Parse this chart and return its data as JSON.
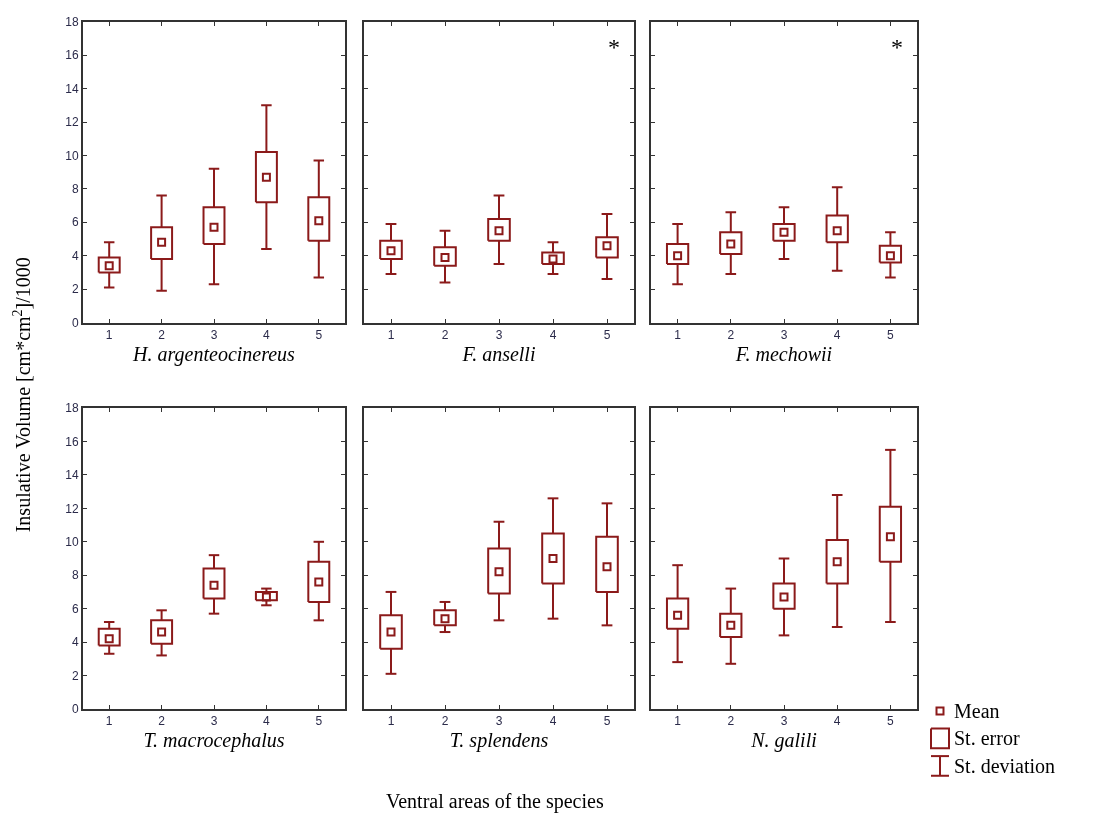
{
  "chart_data": [
    {
      "type": "box",
      "xlabel": "H. argenteocinereus",
      "ylabel": "Insulative Volume [cm*cm$^{2}$]/1000",
      "categories": [
        "1",
        "2",
        "3",
        "4",
        "5"
      ],
      "ylim": [
        0,
        18
      ],
      "yticks": [
        0,
        2,
        4,
        6,
        8,
        10,
        12,
        14,
        16,
        18
      ],
      "grid": false,
      "marker": "square",
      "series": [
        {
          "color": "#8b1a1a",
          "boxes": [
            {
              "low": 2.1,
              "q1": 3.0,
              "mean": 3.4,
              "q3": 3.9,
              "high": 4.8
            },
            {
              "low": 1.9,
              "q1": 3.8,
              "mean": 4.8,
              "q3": 5.7,
              "high": 7.6
            },
            {
              "low": 2.3,
              "q1": 4.7,
              "mean": 5.7,
              "q3": 6.9,
              "high": 9.2
            },
            {
              "low": 4.4,
              "q1": 7.2,
              "mean": 8.7,
              "q3": 10.2,
              "high": 13.0
            },
            {
              "low": 2.7,
              "q1": 4.9,
              "mean": 6.1,
              "q3": 7.5,
              "high": 9.7
            }
          ]
        }
      ]
    },
    {
      "type": "box",
      "xlabel": "F. anselli",
      "categories": [
        "1",
        "2",
        "3",
        "4",
        "5"
      ],
      "ylim": [
        0,
        18
      ],
      "yticks": [
        0,
        2,
        4,
        6,
        8,
        10,
        12,
        14,
        16,
        18
      ],
      "tick_labels": "x",
      "grid": false,
      "marker": "square",
      "annotations": [
        "*"
      ],
      "series": [
        {
          "color": "#8b1a1a",
          "boxes": [
            {
              "low": 2.9,
              "q1": 3.8,
              "mean": 4.3,
              "q3": 4.9,
              "high": 5.9
            },
            {
              "low": 2.4,
              "q1": 3.4,
              "mean": 3.9,
              "q3": 4.5,
              "high": 5.5
            },
            {
              "low": 3.5,
              "q1": 4.9,
              "mean": 5.5,
              "q3": 6.2,
              "high": 7.6
            },
            {
              "low": 2.9,
              "q1": 3.5,
              "mean": 3.8,
              "q3": 4.2,
              "high": 4.8
            },
            {
              "low": 2.6,
              "q1": 3.9,
              "mean": 4.6,
              "q3": 5.1,
              "high": 6.5
            }
          ]
        }
      ]
    },
    {
      "type": "box",
      "xlabel": "F. mechowii",
      "categories": [
        "1",
        "2",
        "3",
        "4",
        "5"
      ],
      "ylim": [
        0,
        18
      ],
      "yticks": [
        0,
        2,
        4,
        6,
        8,
        10,
        12,
        14,
        16,
        18
      ],
      "tick_labels": "x",
      "grid": false,
      "marker": "square",
      "annotations": [
        "*"
      ],
      "series": [
        {
          "color": "#8b1a1a",
          "boxes": [
            {
              "low": 2.3,
              "q1": 3.5,
              "mean": 4.0,
              "q3": 4.7,
              "high": 5.9
            },
            {
              "low": 2.9,
              "q1": 4.1,
              "mean": 4.7,
              "q3": 5.4,
              "high": 6.6
            },
            {
              "low": 3.8,
              "q1": 4.9,
              "mean": 5.4,
              "q3": 5.9,
              "high": 6.9
            },
            {
              "low": 3.1,
              "q1": 4.8,
              "mean": 5.5,
              "q3": 6.4,
              "high": 8.1
            },
            {
              "low": 2.7,
              "q1": 3.6,
              "mean": 4.0,
              "q3": 4.6,
              "high": 5.4
            }
          ]
        }
      ]
    },
    {
      "type": "box",
      "xlabel": "T. macrocephalus",
      "categories": [
        "1",
        "2",
        "3",
        "4",
        "5"
      ],
      "ylim": [
        0,
        18
      ],
      "yticks": [
        0,
        2,
        4,
        6,
        8,
        10,
        12,
        14,
        16,
        18
      ],
      "grid": false,
      "marker": "square",
      "series": [
        {
          "color": "#8b1a1a",
          "boxes": [
            {
              "low": 3.3,
              "q1": 3.8,
              "mean": 4.2,
              "q3": 4.8,
              "high": 5.2
            },
            {
              "low": 3.2,
              "q1": 3.9,
              "mean": 4.6,
              "q3": 5.3,
              "high": 5.9
            },
            {
              "low": 5.7,
              "q1": 6.6,
              "mean": 7.4,
              "q3": 8.4,
              "high": 9.2
            },
            {
              "low": 6.2,
              "q1": 6.5,
              "mean": 6.7,
              "q3": 7.0,
              "high": 7.2
            },
            {
              "low": 5.3,
              "q1": 6.4,
              "mean": 7.6,
              "q3": 8.8,
              "high": 10.0
            }
          ]
        }
      ]
    },
    {
      "type": "box",
      "xlabel": "T. splendens",
      "categories": [
        "1",
        "2",
        "3",
        "4",
        "5"
      ],
      "ylim": [
        0,
        18
      ],
      "yticks": [
        0,
        2,
        4,
        6,
        8,
        10,
        12,
        14,
        16,
        18
      ],
      "tick_labels": "x",
      "grid": false,
      "marker": "square",
      "annotations": [
        "Ventral areas of the species"
      ],
      "series": [
        {
          "color": "#8b1a1a",
          "boxes": [
            {
              "low": 2.1,
              "q1": 3.6,
              "mean": 4.6,
              "q3": 5.6,
              "high": 7.0
            },
            {
              "low": 4.6,
              "q1": 5.0,
              "mean": 5.4,
              "q3": 5.9,
              "high": 6.4
            },
            {
              "low": 5.3,
              "q1": 6.9,
              "mean": 8.2,
              "q3": 9.6,
              "high": 11.2
            },
            {
              "low": 5.4,
              "q1": 7.5,
              "mean": 9.0,
              "q3": 10.5,
              "high": 12.6
            },
            {
              "low": 5.0,
              "q1": 7.0,
              "mean": 8.5,
              "q3": 10.3,
              "high": 12.3
            }
          ]
        }
      ]
    },
    {
      "type": "box",
      "xlabel": "N. galili",
      "categories": [
        "1",
        "2",
        "3",
        "4",
        "5"
      ],
      "ylim": [
        0,
        18
      ],
      "yticks": [
        0,
        2,
        4,
        6,
        8,
        10,
        12,
        14,
        16,
        18
      ],
      "tick_labels": "x",
      "grid": false,
      "marker": "square",
      "annotations": [
        "Mean",
        "St. error",
        "St. deviation"
      ],
      "series": [
        {
          "color": "#8b1a1a",
          "boxes": [
            {
              "low": 2.8,
              "q1": 4.8,
              "mean": 5.6,
              "q3": 6.6,
              "high": 8.6
            },
            {
              "low": 2.7,
              "q1": 4.3,
              "mean": 5.0,
              "q3": 5.7,
              "high": 7.2
            },
            {
              "low": 4.4,
              "q1": 6.0,
              "mean": 6.7,
              "q3": 7.5,
              "high": 9.0
            },
            {
              "low": 4.9,
              "q1": 7.5,
              "mean": 8.8,
              "q3": 10.1,
              "high": 12.8
            },
            {
              "low": 5.2,
              "q1": 8.8,
              "mean": 10.3,
              "q3": 12.1,
              "high": 15.5
            }
          ]
        }
      ]
    }
  ]
}
